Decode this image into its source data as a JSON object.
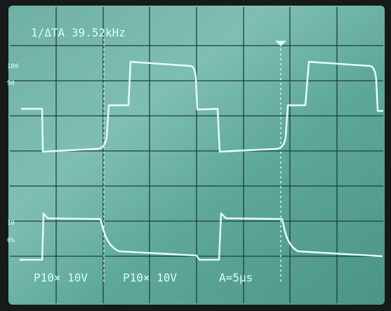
{
  "readout": {
    "top": "1/ΔTA 39.52kHz",
    "bottom": [
      "P10× 10V",
      "P10× 10V",
      "A=5μs"
    ]
  },
  "graticule_labels": [
    "100",
    "90",
    "10",
    "0%"
  ]
}
